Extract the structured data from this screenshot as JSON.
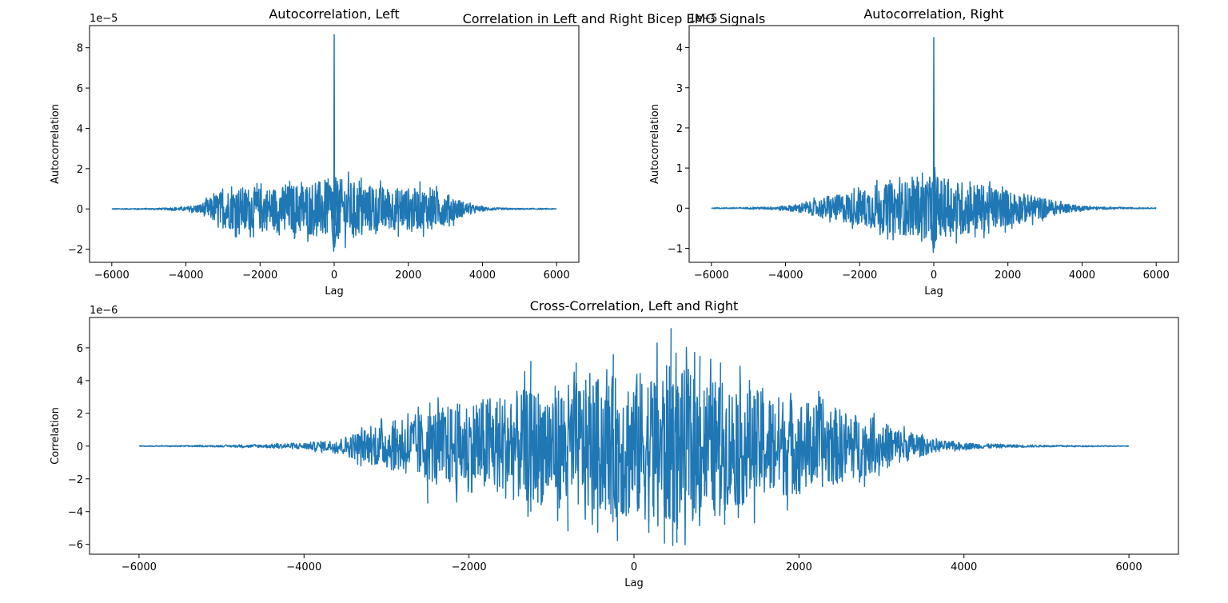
{
  "figure": {
    "suptitle": "Correlation in Left and Right Bicep EMG Signals"
  },
  "chart_data": [
    {
      "type": "line",
      "title": "Autocorrelation, Left",
      "xlabel": "Lag",
      "ylabel": "Autocorrelation",
      "offset_text": "1e−5",
      "scale": 1e-05,
      "xlim": [
        -6600,
        6600
      ],
      "ylim": [
        -2.65,
        9.1
      ],
      "xticks": [
        -6000,
        -4000,
        -2000,
        0,
        2000,
        4000,
        6000
      ],
      "xtick_labels": [
        "−6000",
        "−4000",
        "−2000",
        "0",
        "2000",
        "4000",
        "6000"
      ],
      "yticks": [
        -2,
        0,
        2,
        4,
        6,
        8
      ],
      "ytick_labels": [
        "−2",
        "0",
        "2",
        "4",
        "6",
        "8"
      ],
      "series": [
        {
          "color": "#1f77b4",
          "x_range": [
            -6000,
            6000
          ],
          "envelope_points": [
            [
              -6000,
              0.02
            ],
            [
              -5000,
              0.03
            ],
            [
              -4500,
              0.05
            ],
            [
              -4000,
              0.1
            ],
            [
              -3600,
              0.25
            ],
            [
              -3300,
              0.6
            ],
            [
              -3000,
              0.95
            ],
            [
              -2500,
              1.1
            ],
            [
              -2000,
              1.05
            ],
            [
              -1500,
              1.1
            ],
            [
              -1000,
              1.25
            ],
            [
              -500,
              1.35
            ],
            [
              -150,
              1.5
            ],
            [
              0,
              1.6
            ],
            [
              150,
              1.5
            ],
            [
              500,
              1.35
            ],
            [
              1000,
              1.2
            ],
            [
              1500,
              1.05
            ],
            [
              2000,
              1.05
            ],
            [
              2500,
              1.0
            ],
            [
              3000,
              0.8
            ],
            [
              3300,
              0.55
            ],
            [
              3600,
              0.25
            ],
            [
              4000,
              0.1
            ],
            [
              4500,
              0.05
            ],
            [
              5000,
              0.03
            ],
            [
              6000,
              0.02
            ]
          ],
          "peak_max": 8.65,
          "peak_min": -2.1,
          "near_peak": [
            [
              -100,
              1.0
            ],
            [
              -50,
              -1.1
            ],
            [
              50,
              -1.2
            ],
            [
              100,
              1.2
            ]
          ]
        }
      ]
    },
    {
      "type": "line",
      "title": "Autocorrelation, Right",
      "xlabel": "Lag",
      "ylabel": "Autocorrelation",
      "offset_text": "1e−5",
      "scale": 1e-05,
      "xlim": [
        -6600,
        6600
      ],
      "ylim": [
        -1.35,
        4.55
      ],
      "xticks": [
        -6000,
        -4000,
        -2000,
        0,
        2000,
        4000,
        6000
      ],
      "xtick_labels": [
        "−6000",
        "−4000",
        "−2000",
        "0",
        "2000",
        "4000",
        "6000"
      ],
      "yticks": [
        -1,
        0,
        1,
        2,
        3,
        4
      ],
      "ytick_labels": [
        "−1",
        "0",
        "1",
        "2",
        "3",
        "4"
      ],
      "series": [
        {
          "color": "#1f77b4",
          "x_range": [
            -6000,
            6000
          ],
          "envelope_points": [
            [
              -6000,
              0.01
            ],
            [
              -5000,
              0.02
            ],
            [
              -4500,
              0.03
            ],
            [
              -4000,
              0.06
            ],
            [
              -3500,
              0.12
            ],
            [
              -3000,
              0.25
            ],
            [
              -2500,
              0.35
            ],
            [
              -2000,
              0.45
            ],
            [
              -1500,
              0.55
            ],
            [
              -1000,
              0.65
            ],
            [
              -500,
              0.7
            ],
            [
              -150,
              0.75
            ],
            [
              0,
              0.85
            ],
            [
              150,
              0.75
            ],
            [
              500,
              0.7
            ],
            [
              1000,
              0.65
            ],
            [
              1500,
              0.55
            ],
            [
              2000,
              0.45
            ],
            [
              2500,
              0.35
            ],
            [
              3000,
              0.25
            ],
            [
              3500,
              0.12
            ],
            [
              4000,
              0.06
            ],
            [
              4500,
              0.03
            ],
            [
              5000,
              0.02
            ],
            [
              6000,
              0.01
            ]
          ],
          "peak_max": 4.25,
          "peak_min": -1.1,
          "near_peak": [
            [
              -80,
              0.5
            ],
            [
              -40,
              -0.6
            ],
            [
              40,
              -0.55
            ],
            [
              80,
              0.45
            ]
          ]
        }
      ]
    },
    {
      "type": "line",
      "title": "Cross-Correlation, Left and Right",
      "xlabel": "Lag",
      "ylabel": "Correlation",
      "offset_text": "1e−6",
      "scale": 1e-06,
      "xlim": [
        -6600,
        6600
      ],
      "ylim": [
        -6.6,
        7.85
      ],
      "xticks": [
        -6000,
        -4000,
        -2000,
        0,
        2000,
        4000,
        6000
      ],
      "xtick_labels": [
        "−6000",
        "−4000",
        "−2000",
        "0",
        "2000",
        "4000",
        "6000"
      ],
      "yticks": [
        -6,
        -4,
        -2,
        0,
        2,
        4,
        6
      ],
      "ytick_labels": [
        "−6",
        "−4",
        "−2",
        "0",
        "2",
        "4",
        "6"
      ],
      "series": [
        {
          "color": "#1f77b4",
          "x_range": [
            -6000,
            6000
          ],
          "envelope_points": [
            [
              -6000,
              0.02
            ],
            [
              -5000,
              0.05
            ],
            [
              -4500,
              0.1
            ],
            [
              -4000,
              0.2
            ],
            [
              -3600,
              0.4
            ],
            [
              -3400,
              0.8
            ],
            [
              -3000,
              1.4
            ],
            [
              -2500,
              2.2
            ],
            [
              -2000,
              2.8
            ],
            [
              -1500,
              3.3
            ],
            [
              -1000,
              3.7
            ],
            [
              -500,
              4.1
            ],
            [
              0,
              4.5
            ],
            [
              400,
              5.0
            ],
            [
              800,
              4.3
            ],
            [
              1200,
              3.8
            ],
            [
              1600,
              3.3
            ],
            [
              2000,
              2.9
            ],
            [
              2500,
              2.3
            ],
            [
              3000,
              1.5
            ],
            [
              3400,
              0.8
            ],
            [
              3600,
              0.4
            ],
            [
              4000,
              0.2
            ],
            [
              4500,
              0.1
            ],
            [
              5000,
              0.05
            ],
            [
              6000,
              0.02
            ]
          ],
          "spikes": [
            [
              450,
              7.2
            ],
            [
              -1250,
              5.2
            ],
            [
              -250,
              5.6
            ],
            [
              -700,
              5.1
            ],
            [
              800,
              5.5
            ],
            [
              1050,
              5.1
            ],
            [
              370,
              -5.95
            ],
            [
              -200,
              -5.8
            ],
            [
              520,
              -5.9
            ],
            [
              -1250,
              -4.0
            ],
            [
              -2500,
              -3.5
            ],
            [
              1100,
              -4.8
            ],
            [
              -800,
              -5.2
            ],
            [
              180,
              -5.3
            ]
          ]
        }
      ]
    }
  ]
}
